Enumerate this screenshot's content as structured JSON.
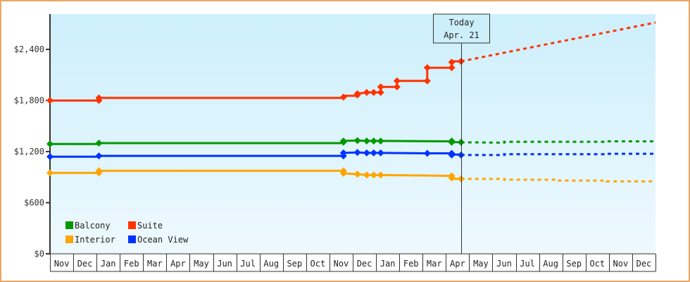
{
  "chart_data": {
    "type": "line",
    "title": "",
    "xlabel": "",
    "ylabel": "",
    "ylim": [
      0,
      2800
    ],
    "y_ticks": [
      {
        "value": 0,
        "label": "$0"
      },
      {
        "value": 600,
        "label": "$600"
      },
      {
        "value": 1200,
        "label": "$1,200"
      },
      {
        "value": 1800,
        "label": "$1,800"
      },
      {
        "value": 2400,
        "label": "$2,400"
      }
    ],
    "x_months": [
      "Nov",
      "Dec",
      "Jan",
      "Feb",
      "Mar",
      "Apr",
      "May",
      "Jun",
      "Jul",
      "Aug",
      "Sep",
      "Oct",
      "Nov",
      "Dec",
      "Jan",
      "Feb",
      "Mar",
      "Apr",
      "May",
      "Jun",
      "Jul",
      "Aug",
      "Sep",
      "Oct",
      "Nov",
      "Dec"
    ],
    "today_marker": {
      "line1": "Today",
      "line2": "Apr. 21",
      "month_index": 17.65
    },
    "grid": false,
    "legend_position": "bottom-left",
    "series": [
      {
        "name": "Suite",
        "color": "#ff3300",
        "points": [
          [
            0,
            1800
          ],
          [
            2.1,
            1800
          ],
          [
            2.1,
            1830
          ],
          [
            12.6,
            1830
          ],
          [
            12.6,
            1855
          ],
          [
            13.2,
            1855
          ],
          [
            13.2,
            1880
          ],
          [
            13.6,
            1895
          ],
          [
            13.9,
            1895
          ],
          [
            14.2,
            1895
          ],
          [
            14.2,
            1960
          ],
          [
            14.9,
            1960
          ],
          [
            14.9,
            2030
          ],
          [
            16.2,
            2030
          ],
          [
            16.2,
            2185
          ],
          [
            17.25,
            2185
          ],
          [
            17.25,
            2260
          ],
          [
            17.65,
            2260
          ]
        ],
        "markers": [
          [
            0,
            1800
          ],
          [
            2.1,
            1800
          ],
          [
            2.1,
            1830
          ],
          [
            12.6,
            1840
          ],
          [
            13.2,
            1865
          ],
          [
            13.2,
            1880
          ],
          [
            13.6,
            1895
          ],
          [
            13.9,
            1895
          ],
          [
            14.2,
            1895
          ],
          [
            14.2,
            1960
          ],
          [
            14.9,
            1960
          ],
          [
            14.9,
            2030
          ],
          [
            16.2,
            2030
          ],
          [
            16.2,
            2185
          ],
          [
            17.25,
            2185
          ],
          [
            17.25,
            2250
          ],
          [
            17.65,
            2260
          ]
        ],
        "projection": [
          [
            17.65,
            2260
          ],
          [
            26,
            2715
          ]
        ]
      },
      {
        "name": "Balcony",
        "color": "#009900",
        "points": [
          [
            0,
            1290
          ],
          [
            2.1,
            1290
          ],
          [
            2.1,
            1300
          ],
          [
            12.6,
            1300
          ],
          [
            12.6,
            1325
          ],
          [
            13.2,
            1330
          ],
          [
            13.6,
            1325
          ],
          [
            13.9,
            1325
          ],
          [
            14.2,
            1325
          ],
          [
            17.25,
            1320
          ],
          [
            17.25,
            1310
          ],
          [
            17.65,
            1310
          ]
        ],
        "markers": [
          [
            0,
            1290
          ],
          [
            2.1,
            1300
          ],
          [
            12.6,
            1310
          ],
          [
            12.6,
            1325
          ],
          [
            13.2,
            1330
          ],
          [
            13.6,
            1325
          ],
          [
            13.9,
            1325
          ],
          [
            14.2,
            1325
          ],
          [
            17.25,
            1325
          ],
          [
            17.25,
            1310
          ],
          [
            17.65,
            1310
          ]
        ],
        "projection": [
          [
            17.65,
            1310
          ],
          [
            19.5,
            1305
          ],
          [
            19.5,
            1315
          ],
          [
            23.9,
            1315
          ],
          [
            23.9,
            1320
          ],
          [
            26,
            1320
          ]
        ]
      },
      {
        "name": "Ocean View",
        "color": "#0033ff",
        "points": [
          [
            0,
            1140
          ],
          [
            2.1,
            1140
          ],
          [
            2.1,
            1150
          ],
          [
            12.6,
            1150
          ],
          [
            12.6,
            1185
          ],
          [
            13.2,
            1190
          ],
          [
            13.6,
            1185
          ],
          [
            13.9,
            1185
          ],
          [
            14.2,
            1185
          ],
          [
            16.2,
            1180
          ],
          [
            17.25,
            1180
          ],
          [
            17.25,
            1165
          ],
          [
            17.65,
            1165
          ]
        ],
        "markers": [
          [
            0,
            1140
          ],
          [
            2.1,
            1150
          ],
          [
            12.6,
            1150
          ],
          [
            12.6,
            1185
          ],
          [
            13.2,
            1190
          ],
          [
            13.6,
            1185
          ],
          [
            13.9,
            1185
          ],
          [
            14.2,
            1185
          ],
          [
            16.2,
            1180
          ],
          [
            17.25,
            1180
          ],
          [
            17.25,
            1160
          ],
          [
            17.65,
            1160
          ]
        ],
        "projection": [
          [
            17.65,
            1160
          ],
          [
            19.5,
            1160
          ],
          [
            19.5,
            1170
          ],
          [
            23.9,
            1170
          ],
          [
            23.9,
            1175
          ],
          [
            26,
            1175
          ]
        ]
      },
      {
        "name": "Interior",
        "color": "#ffa500",
        "points": [
          [
            0,
            950
          ],
          [
            2.1,
            950
          ],
          [
            2.1,
            975
          ],
          [
            12.6,
            975
          ],
          [
            12.6,
            945
          ],
          [
            13.2,
            935
          ],
          [
            13.6,
            925
          ],
          [
            13.9,
            925
          ],
          [
            14.2,
            925
          ],
          [
            17.25,
            915
          ],
          [
            17.25,
            880
          ],
          [
            17.65,
            880
          ]
        ],
        "markers": [
          [
            0,
            950
          ],
          [
            2.1,
            950
          ],
          [
            2.1,
            975
          ],
          [
            12.6,
            975
          ],
          [
            12.6,
            945
          ],
          [
            13.2,
            935
          ],
          [
            13.6,
            925
          ],
          [
            13.9,
            925
          ],
          [
            14.2,
            925
          ],
          [
            17.25,
            915
          ],
          [
            17.25,
            890
          ],
          [
            17.65,
            880
          ]
        ],
        "projection": [
          [
            17.65,
            880
          ],
          [
            19.5,
            880
          ],
          [
            19.5,
            870
          ],
          [
            21.7,
            870
          ],
          [
            21.7,
            860
          ],
          [
            23.9,
            860
          ],
          [
            23.9,
            850
          ],
          [
            26,
            850
          ]
        ]
      }
    ],
    "legend": [
      {
        "label": "Balcony",
        "color": "#009900"
      },
      {
        "label": "Suite",
        "color": "#ff3300"
      },
      {
        "label": "Interior",
        "color": "#ffa500"
      },
      {
        "label": "Ocean View",
        "color": "#0033ff"
      }
    ]
  }
}
